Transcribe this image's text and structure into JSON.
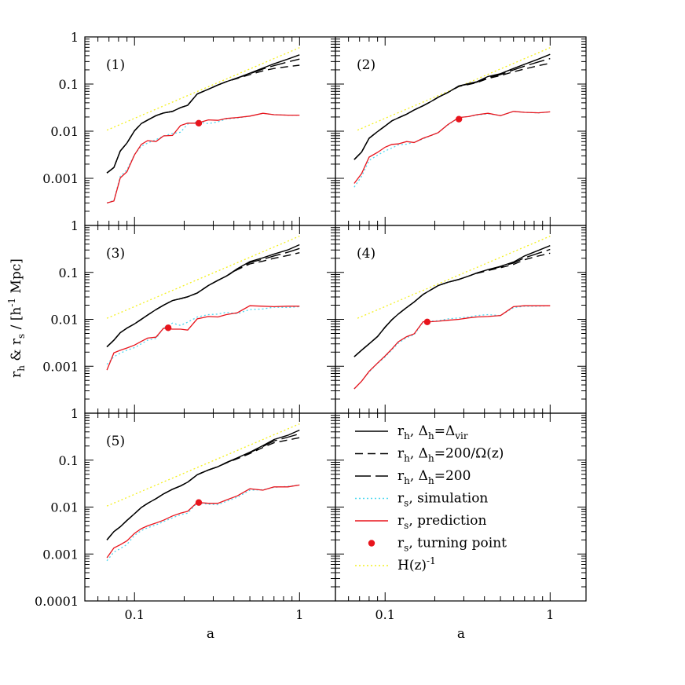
{
  "chart_data": {
    "type": "line",
    "x_axis": {
      "label": "a",
      "scale": "log",
      "range": [
        0.05,
        1.65
      ],
      "ticks": [
        {
          "value": 0.1,
          "label": "0.1"
        },
        {
          "value": 1,
          "label": "1"
        }
      ]
    },
    "y_axis": {
      "label_parts": [
        "r",
        "h",
        " & r",
        "s",
        " / [h",
        "-1",
        " Mpc]"
      ],
      "scale": "log",
      "range": [
        0.0001,
        1
      ],
      "ticks": [
        {
          "value": 1,
          "label": "1"
        },
        {
          "value": 0.1,
          "label": "0.1"
        },
        {
          "value": 0.01,
          "label": "0.01"
        },
        {
          "value": 0.001,
          "label": "0.001"
        },
        {
          "value": 0.0001,
          "label": "0.0001"
        }
      ]
    },
    "styles": {
      "rh_vir": {
        "color": "#000000",
        "dash": ""
      },
      "rh_200omega": {
        "color": "#000000",
        "dash": "10,6"
      },
      "rh_200": {
        "color": "#000000",
        "dash": "20,6"
      },
      "rs_sim": {
        "color": "#4fd8f0",
        "dash": "2,3"
      },
      "rs_pred": {
        "color": "#e8141c",
        "dash": ""
      },
      "hz": {
        "color": "#f4f020",
        "dash": "2,3"
      },
      "turning_point": {
        "color": "#e8141c"
      }
    },
    "legend": [
      {
        "key": "rh_vir",
        "kind": "line",
        "sym": "r",
        "sub": "h",
        "text_a": ",  Δ",
        "sub2": "h",
        "text_b": "=Δ",
        "sub3": "vir"
      },
      {
        "key": "rh_200omega",
        "kind": "line",
        "sym": "r",
        "sub": "h",
        "text_a": ",  Δ",
        "sub2": "h",
        "text_b": "=200/Ω(z)",
        "sub3": ""
      },
      {
        "key": "rh_200",
        "kind": "line",
        "sym": "r",
        "sub": "h",
        "text_a": ",  Δ",
        "sub2": "h",
        "text_b": "=200",
        "sub3": ""
      },
      {
        "key": "rs_sim",
        "kind": "line",
        "sym": "r",
        "sub": "s",
        "text_a": ",  simulation",
        "sub2": "",
        "text_b": "",
        "sub3": ""
      },
      {
        "key": "rs_pred",
        "kind": "line",
        "sym": "r",
        "sub": "s",
        "text_a": ",  prediction",
        "sub2": "",
        "text_b": "",
        "sub3": ""
      },
      {
        "key": "turning_point",
        "kind": "dot",
        "sym": "r",
        "sub": "s",
        "text_a": ",  turning point",
        "sub2": "",
        "text_b": "",
        "sub3": ""
      },
      {
        "key": "hz",
        "kind": "line",
        "sym": "H(z)",
        "sup": "-1",
        "sub": "",
        "text_a": "",
        "sub2": "",
        "text_b": "",
        "sub3": ""
      }
    ],
    "panels": [
      {
        "label": "(1)",
        "a": [
          0.068,
          0.075,
          0.082,
          0.09,
          0.1,
          0.11,
          0.12,
          0.135,
          0.15,
          0.17,
          0.19,
          0.21,
          0.24,
          0.28,
          0.32,
          0.36,
          0.42,
          0.5,
          0.6,
          0.7,
          0.85,
          1.0
        ],
        "rh_vir": [
          0.0013,
          0.0017,
          0.0038,
          0.0056,
          0.0102,
          0.0145,
          0.0172,
          0.0214,
          0.0244,
          0.0263,
          0.0316,
          0.0355,
          0.0617,
          0.0776,
          0.0955,
          0.1122,
          0.1349,
          0.1698,
          0.2188,
          0.2692,
          0.3388,
          0.4169
        ],
        "rh_200omega": [
          0.0013,
          0.0017,
          0.0038,
          0.0056,
          0.0102,
          0.0145,
          0.0172,
          0.0214,
          0.0244,
          0.0263,
          0.0316,
          0.0355,
          0.0617,
          0.0776,
          0.0955,
          0.1122,
          0.1318,
          0.1585,
          0.1905,
          0.2138,
          0.2344,
          0.2512
        ],
        "rh_200": [
          0.0013,
          0.0017,
          0.0038,
          0.0056,
          0.0102,
          0.0145,
          0.0172,
          0.0214,
          0.0244,
          0.0263,
          0.0316,
          0.0355,
          0.0617,
          0.0776,
          0.0955,
          0.1122,
          0.1349,
          0.166,
          0.2089,
          0.2455,
          0.2951,
          0.3388
        ],
        "rs_sim": [
          0.0003,
          0.00034,
          0.0011,
          0.0015,
          0.0032,
          0.0048,
          0.0056,
          0.0066,
          0.0079,
          0.0089,
          0.0095,
          0.0141,
          0.0158,
          0.0145,
          0.0158,
          0.0182,
          0.0191,
          0.0209,
          0.024,
          0.0224,
          0.0219,
          0.0219
        ],
        "rs_pred": [
          0.0003,
          0.00033,
          0.00102,
          0.00138,
          0.00314,
          0.00525,
          0.00631,
          0.00603,
          0.00794,
          0.00813,
          0.01318,
          0.01479,
          0.01479,
          0.01738,
          0.01698,
          0.01862,
          0.0195,
          0.02089,
          0.02399,
          0.02239,
          0.02188,
          0.02188
        ],
        "tp": [
          0.245,
          0.0148
        ]
      },
      {
        "label": "(2)",
        "a": [
          0.065,
          0.072,
          0.08,
          0.09,
          0.1,
          0.11,
          0.12,
          0.135,
          0.15,
          0.17,
          0.19,
          0.21,
          0.24,
          0.28,
          0.32,
          0.36,
          0.42,
          0.5,
          0.6,
          0.7,
          0.85,
          1.0
        ],
        "rh_vir": [
          0.0025,
          0.0036,
          0.0071,
          0.0098,
          0.0129,
          0.0166,
          0.0191,
          0.0229,
          0.0282,
          0.0347,
          0.0427,
          0.0525,
          0.0661,
          0.0912,
          0.1023,
          0.1122,
          0.1445,
          0.166,
          0.2138,
          0.263,
          0.3388,
          0.4266
        ],
        "rh_200omega": [
          0.0025,
          0.0036,
          0.0071,
          0.0098,
          0.0129,
          0.0166,
          0.0191,
          0.0229,
          0.0282,
          0.0347,
          0.0427,
          0.0525,
          0.0661,
          0.0891,
          0.0977,
          0.1072,
          0.1318,
          0.1514,
          0.182,
          0.2089,
          0.2455,
          0.2754
        ],
        "rh_200": [
          0.0025,
          0.0036,
          0.0071,
          0.0098,
          0.0129,
          0.0166,
          0.0191,
          0.0229,
          0.0282,
          0.0347,
          0.0427,
          0.0525,
          0.0661,
          0.0912,
          0.1,
          0.1096,
          0.138,
          0.1585,
          0.1995,
          0.2399,
          0.2951,
          0.3467
        ],
        "rs_sim": [
          0.00065,
          0.0011,
          0.0024,
          0.0031,
          0.0038,
          0.0044,
          0.0051,
          0.0053,
          0.0058,
          0.0069,
          0.0081,
          0.0093,
          0.0135,
          0.0195,
          0.0204,
          0.0219,
          0.0234,
          0.0214,
          0.0263,
          0.0251,
          0.0245,
          0.0257
        ],
        "rs_pred": [
          0.00078,
          0.00126,
          0.00282,
          0.00355,
          0.00457,
          0.00525,
          0.00537,
          0.00603,
          0.00575,
          0.00708,
          0.00813,
          0.00933,
          0.0138,
          0.0195,
          0.02042,
          0.02239,
          0.02399,
          0.02138,
          0.0263,
          0.02512,
          0.02455,
          0.0257
        ],
        "tp": [
          0.28,
          0.018
        ]
      },
      {
        "label": "(3)",
        "a": [
          0.068,
          0.075,
          0.082,
          0.09,
          0.1,
          0.11,
          0.12,
          0.135,
          0.15,
          0.17,
          0.19,
          0.21,
          0.24,
          0.28,
          0.32,
          0.36,
          0.42,
          0.5,
          0.6,
          0.7,
          0.85,
          1.0
        ],
        "rh_vir": [
          0.0026,
          0.0036,
          0.0052,
          0.0065,
          0.008,
          0.01,
          0.0123,
          0.0161,
          0.02,
          0.0251,
          0.0275,
          0.0302,
          0.0363,
          0.0525,
          0.0676,
          0.0832,
          0.1202,
          0.1698,
          0.2042,
          0.2455,
          0.302,
          0.389
        ],
        "rh_200omega": [
          0.0026,
          0.0036,
          0.0052,
          0.0065,
          0.008,
          0.01,
          0.0123,
          0.0161,
          0.02,
          0.0251,
          0.0275,
          0.0302,
          0.0363,
          0.0525,
          0.0676,
          0.0832,
          0.1148,
          0.1514,
          0.1738,
          0.1995,
          0.2291,
          0.263
        ],
        "rh_200": [
          0.0026,
          0.0036,
          0.0052,
          0.0065,
          0.008,
          0.01,
          0.0123,
          0.0161,
          0.02,
          0.0251,
          0.0275,
          0.0302,
          0.0363,
          0.0525,
          0.0676,
          0.0832,
          0.1175,
          0.1622,
          0.1905,
          0.2239,
          0.2692,
          0.3236
        ],
        "rs_sim": [
          0.0011,
          0.0016,
          0.0019,
          0.0022,
          0.0025,
          0.003,
          0.0036,
          0.0039,
          0.0066,
          0.0083,
          0.0074,
          0.0087,
          0.0112,
          0.0126,
          0.0129,
          0.0141,
          0.0132,
          0.0162,
          0.0166,
          0.0182,
          0.0178,
          0.0186
        ],
        "rs_pred": [
          0.00083,
          0.00194,
          0.00219,
          0.00245,
          0.00282,
          0.00339,
          0.00398,
          0.00417,
          0.00646,
          0.00617,
          0.00617,
          0.00589,
          0.01023,
          0.01148,
          0.01122,
          0.01259,
          0.0138,
          0.0195,
          0.01905,
          0.01862,
          0.01905,
          0.01905
        ],
        "tp": [
          0.16,
          0.0066
        ]
      },
      {
        "label": "(4)",
        "a": [
          0.065,
          0.072,
          0.08,
          0.09,
          0.1,
          0.11,
          0.12,
          0.135,
          0.15,
          0.17,
          0.19,
          0.21,
          0.24,
          0.28,
          0.32,
          0.36,
          0.42,
          0.5,
          0.6,
          0.7,
          0.85,
          1.0
        ],
        "rh_vir": [
          0.0016,
          0.0022,
          0.003,
          0.0043,
          0.0068,
          0.0098,
          0.0129,
          0.0178,
          0.0234,
          0.0339,
          0.0427,
          0.0525,
          0.0617,
          0.0708,
          0.0832,
          0.0977,
          0.1148,
          0.1349,
          0.166,
          0.2239,
          0.2951,
          0.3715
        ],
        "rh_200omega": [
          0.0016,
          0.0022,
          0.003,
          0.0043,
          0.0068,
          0.0098,
          0.0129,
          0.0178,
          0.0234,
          0.0339,
          0.0427,
          0.0525,
          0.0617,
          0.0708,
          0.0832,
          0.0955,
          0.1096,
          0.1259,
          0.1479,
          0.1862,
          0.2239,
          0.257
        ],
        "rh_200": [
          0.0016,
          0.0022,
          0.003,
          0.0043,
          0.0068,
          0.0098,
          0.0129,
          0.0178,
          0.0234,
          0.0339,
          0.0427,
          0.0525,
          0.0617,
          0.0708,
          0.0832,
          0.0966,
          0.1122,
          0.1318,
          0.1585,
          0.2042,
          0.257,
          0.309
        ],
        "rs_sim": [
          0.00033,
          0.00048,
          0.00076,
          0.00115,
          0.00158,
          0.00224,
          0.00309,
          0.00407,
          0.00468,
          0.00871,
          0.00912,
          0.00933,
          0.01023,
          0.01072,
          0.01122,
          0.01202,
          0.01259,
          0.01202,
          0.01778,
          0.01905,
          0.01905,
          0.0195
        ],
        "rs_pred": [
          0.00033,
          0.00048,
          0.00078,
          0.00117,
          0.00166,
          0.00234,
          0.00331,
          0.00427,
          0.0049,
          0.00891,
          0.00891,
          0.00912,
          0.00955,
          0.01,
          0.01072,
          0.01122,
          0.01148,
          0.01202,
          0.01862,
          0.0195,
          0.0195,
          0.0195
        ],
        "tp": [
          0.18,
          0.0088
        ]
      },
      {
        "label": "(5)",
        "a": [
          0.068,
          0.075,
          0.082,
          0.09,
          0.1,
          0.11,
          0.12,
          0.135,
          0.15,
          0.17,
          0.19,
          0.21,
          0.24,
          0.28,
          0.32,
          0.36,
          0.42,
          0.5,
          0.6,
          0.7,
          0.85,
          1.0
        ],
        "rh_vir": [
          0.002,
          0.003,
          0.0038,
          0.0052,
          0.0072,
          0.0098,
          0.012,
          0.0151,
          0.0191,
          0.024,
          0.0282,
          0.0339,
          0.049,
          0.0617,
          0.0724,
          0.0891,
          0.1122,
          0.1479,
          0.2042,
          0.2754,
          0.3388,
          0.4365
        ],
        "rh_200omega": [
          0.002,
          0.003,
          0.0038,
          0.0052,
          0.0072,
          0.0098,
          0.012,
          0.0151,
          0.0191,
          0.024,
          0.0282,
          0.0339,
          0.049,
          0.0617,
          0.0724,
          0.0871,
          0.1072,
          0.138,
          0.1862,
          0.2344,
          0.2692,
          0.302
        ],
        "rh_200": [
          0.002,
          0.003,
          0.0038,
          0.0052,
          0.0072,
          0.0098,
          0.012,
          0.0151,
          0.0191,
          0.024,
          0.0282,
          0.0339,
          0.049,
          0.0617,
          0.0724,
          0.0881,
          0.1096,
          0.1445,
          0.195,
          0.257,
          0.309,
          0.3631
        ],
        "rs_sim": [
          0.00072,
          0.0011,
          0.0013,
          0.0016,
          0.0025,
          0.00316,
          0.00363,
          0.00417,
          0.0049,
          0.00589,
          0.00692,
          0.00741,
          0.0123,
          0.01148,
          0.01122,
          0.01318,
          0.01622,
          0.02291,
          0.02344,
          0.0263,
          0.02754,
          0.02951
        ],
        "rs_pred": [
          0.00083,
          0.00135,
          0.00158,
          0.00191,
          0.00275,
          0.00347,
          0.00398,
          0.00457,
          0.00525,
          0.00646,
          0.00741,
          0.00813,
          0.01259,
          0.01202,
          0.01202,
          0.01413,
          0.01738,
          0.02455,
          0.02291,
          0.02692,
          0.02692,
          0.02951
        ],
        "tp": [
          0.245,
          0.0125
        ]
      }
    ]
  }
}
